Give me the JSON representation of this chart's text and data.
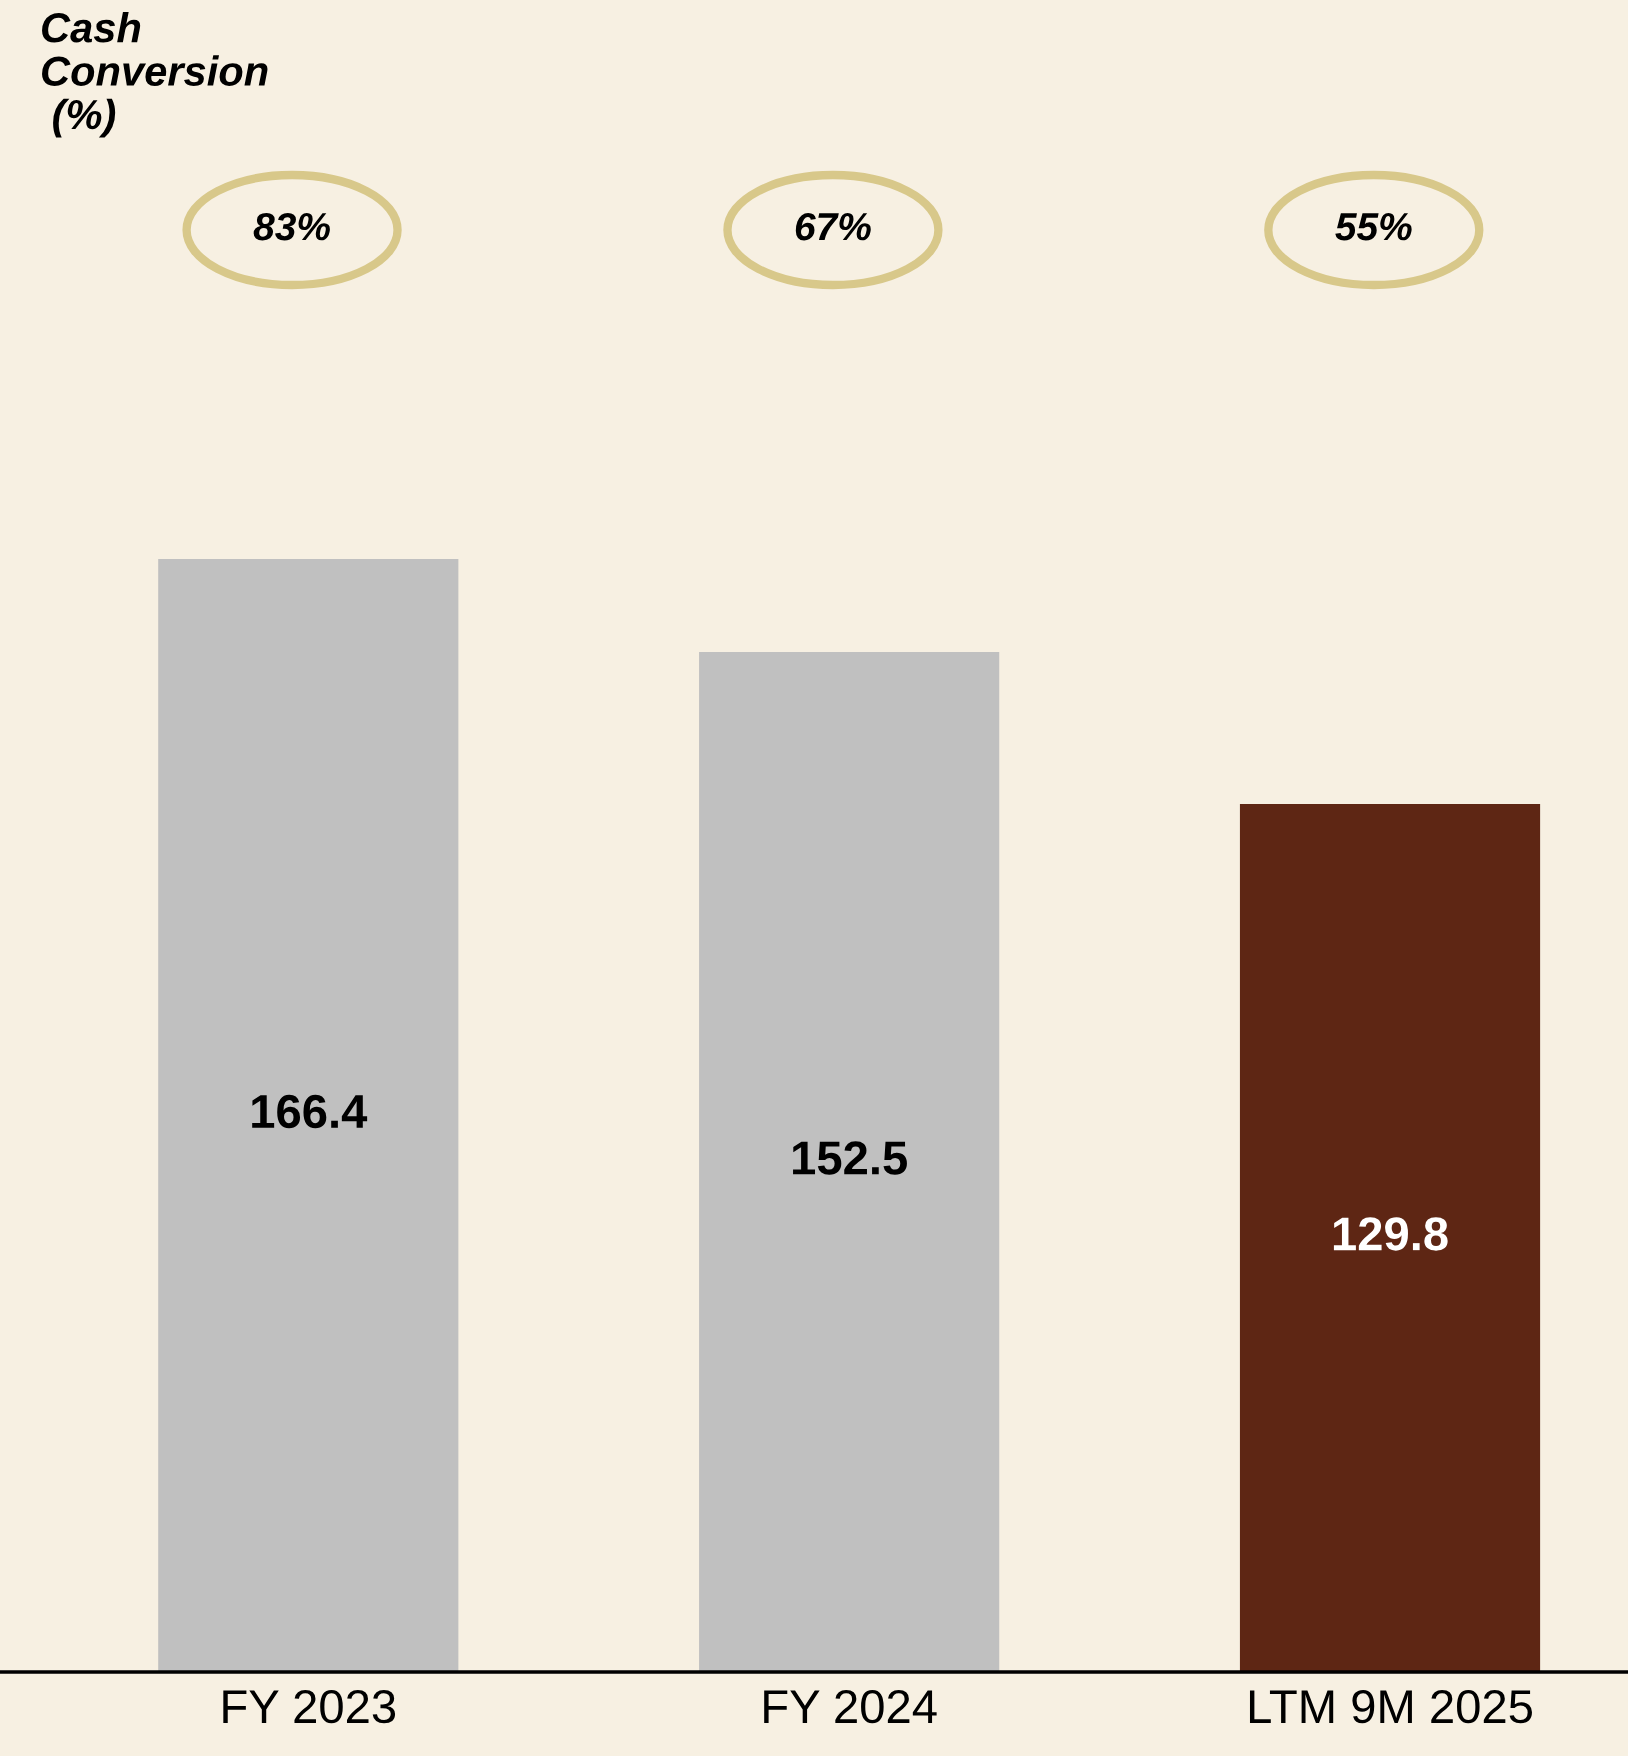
{
  "chart_data": {
    "type": "bar",
    "categories": [
      "FY 2023",
      "FY 2024",
      "LTM 9M 2025"
    ],
    "values": [
      166.4,
      152.5,
      129.8
    ],
    "colors": [
      "#c0c0c0",
      "#c0c0c0",
      "#5e2614"
    ],
    "ylim": [
      0,
      250
    ],
    "data_labels": true,
    "grid": false,
    "legend": false,
    "annotations": [
      "Cash\nConversion\n (%)",
      "83%",
      "67%",
      "55%"
    ]
  }
}
